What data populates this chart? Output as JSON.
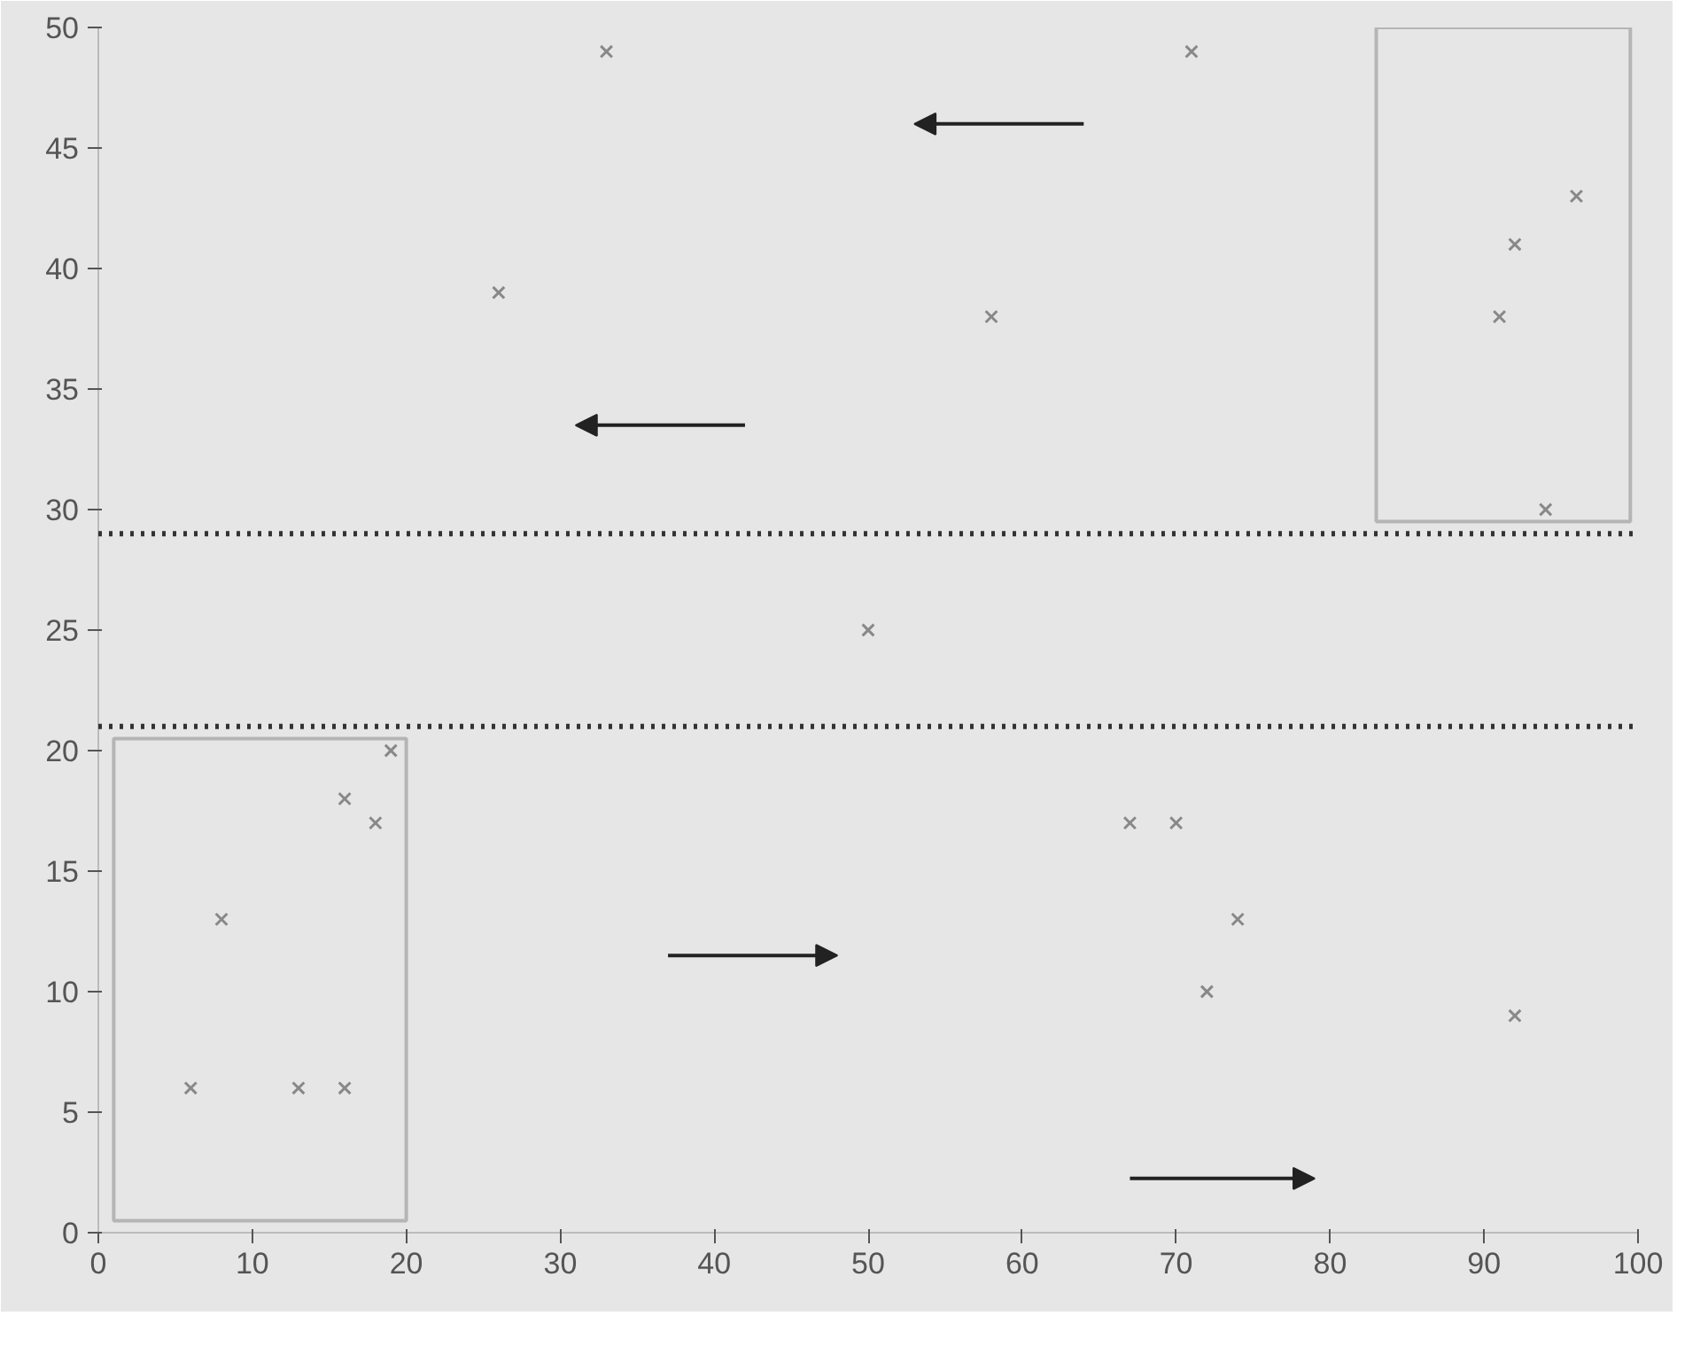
{
  "chart_data": {
    "type": "scatter",
    "series": [
      {
        "color": "#888888",
        "x": [
          6,
          8,
          13,
          16,
          16,
          18,
          19,
          26,
          33,
          50,
          58,
          67,
          70,
          71,
          72,
          74,
          91,
          92,
          92,
          94,
          96
        ],
        "values": [
          6,
          13,
          6,
          6,
          18,
          17,
          20,
          39,
          49,
          25,
          38,
          17,
          17,
          49,
          10,
          13,
          38,
          41,
          9,
          30,
          43
        ]
      }
    ],
    "xlim": [
      0,
      100
    ],
    "ylim": [
      0,
      50
    ],
    "xticks": [
      0,
      10,
      20,
      30,
      40,
      50,
      60,
      70,
      80,
      90,
      100
    ],
    "yticks": [
      0,
      5,
      10,
      15,
      20,
      25,
      30,
      35,
      40,
      45,
      50
    ],
    "ref_lines": [
      {
        "axis": "y",
        "value": 29,
        "label": null,
        "color": "#333333",
        "line_style": "dotted"
      },
      {
        "axis": "y",
        "value": 21,
        "label": null,
        "color": "#333333",
        "line_style": "dotted"
      }
    ],
    "marker": "cross"
  }
}
